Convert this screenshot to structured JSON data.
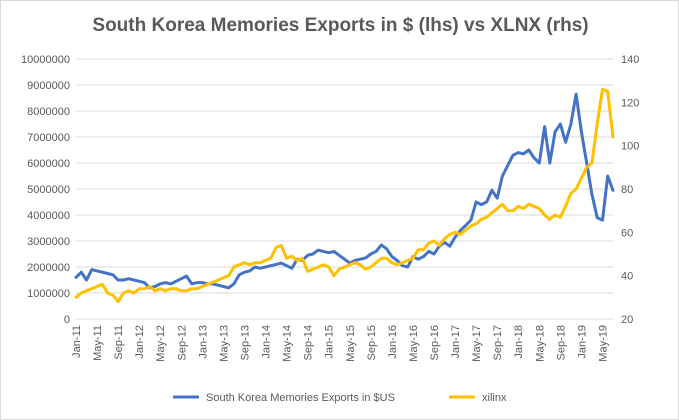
{
  "chart_data": {
    "type": "line",
    "title": "South Korea Memories Exports in $ (lhs) vs XLNX (rhs)",
    "x_tick_labels": [
      "Jan-11",
      "May-11",
      "Sep-11",
      "Jan-12",
      "May-12",
      "Sep-12",
      "Jan-13",
      "May-13",
      "Sep-13",
      "Jan-14",
      "May-14",
      "Sep-14",
      "Jan-15",
      "May-15",
      "Sep-15",
      "Jan-16",
      "May-16",
      "Sep-16",
      "Jan-17",
      "May-17",
      "Sep-17",
      "Jan-18",
      "May-18",
      "Sep-18",
      "Jan-19",
      "May-19"
    ],
    "y_left": {
      "ticks": [
        "0",
        "1000000",
        "2000000",
        "3000000",
        "4000000",
        "5000000",
        "6000000",
        "7000000",
        "8000000",
        "9000000",
        "10000000"
      ],
      "min": 0,
      "max": 10000000
    },
    "y_right": {
      "ticks": [
        "20",
        "40",
        "60",
        "80",
        "100",
        "120",
        "140"
      ],
      "min": 20,
      "max": 140
    },
    "grid": "horizontal",
    "legend_position": "bottom",
    "colors": {
      "exports": "#4472c4",
      "xilinx": "#ffc000",
      "grid": "#d9d9d9",
      "text": "#595959"
    },
    "series": [
      {
        "name": "South Korea Memories Exports in $US",
        "axis": "left",
        "values": [
          1600000,
          1800000,
          1500000,
          1900000,
          1850000,
          1800000,
          1750000,
          1700000,
          1500000,
          1500000,
          1550000,
          1500000,
          1450000,
          1400000,
          1200000,
          1250000,
          1350000,
          1400000,
          1350000,
          1450000,
          1550000,
          1650000,
          1350000,
          1400000,
          1400000,
          1350000,
          1350000,
          1300000,
          1250000,
          1200000,
          1350000,
          1700000,
          1800000,
          1850000,
          2000000,
          1950000,
          2000000,
          2050000,
          2100000,
          2150000,
          2050000,
          1950000,
          2300000,
          2250000,
          2450000,
          2500000,
          2650000,
          2600000,
          2550000,
          2600000,
          2450000,
          2300000,
          2150000,
          2250000,
          2300000,
          2350000,
          2500000,
          2600000,
          2850000,
          2700000,
          2400000,
          2250000,
          2050000,
          2000000,
          2400000,
          2300000,
          2400000,
          2600000,
          2500000,
          2800000,
          2950000,
          2800000,
          3150000,
          3400000,
          3600000,
          3800000,
          4500000,
          4400000,
          4500000,
          4950000,
          4650000,
          5500000,
          5900000,
          6300000,
          6400000,
          6350000,
          6500000,
          6200000,
          6000000,
          7400000,
          6000000,
          7200000,
          7500000,
          6800000,
          7500000,
          8650000,
          7200000,
          6000000,
          4800000,
          3900000,
          3800000,
          5500000,
          4950000
        ]
      },
      {
        "name": "xilinx",
        "axis": "right",
        "values": [
          30,
          32,
          33,
          34,
          35,
          36,
          32,
          31,
          28,
          32,
          33,
          32,
          34,
          34,
          35,
          33,
          34,
          33,
          34,
          34,
          33,
          33,
          34,
          34,
          35,
          36,
          37,
          38,
          39,
          40,
          44,
          45,
          46,
          45,
          46,
          46,
          47,
          48,
          53,
          54,
          48,
          49,
          47,
          48,
          42,
          43,
          44,
          45,
          44,
          40,
          43,
          44,
          45,
          46,
          45,
          43,
          44,
          46,
          48,
          48,
          46,
          45,
          46,
          47,
          48,
          52,
          52,
          55,
          56,
          54,
          57,
          59,
          60,
          59,
          61,
          63,
          64,
          66,
          67,
          69,
          71,
          73,
          70,
          70,
          72,
          71,
          73,
          72,
          71,
          68,
          66,
          68,
          67,
          72,
          78,
          80,
          85,
          90,
          92,
          110,
          126,
          125,
          104
        ]
      }
    ]
  }
}
